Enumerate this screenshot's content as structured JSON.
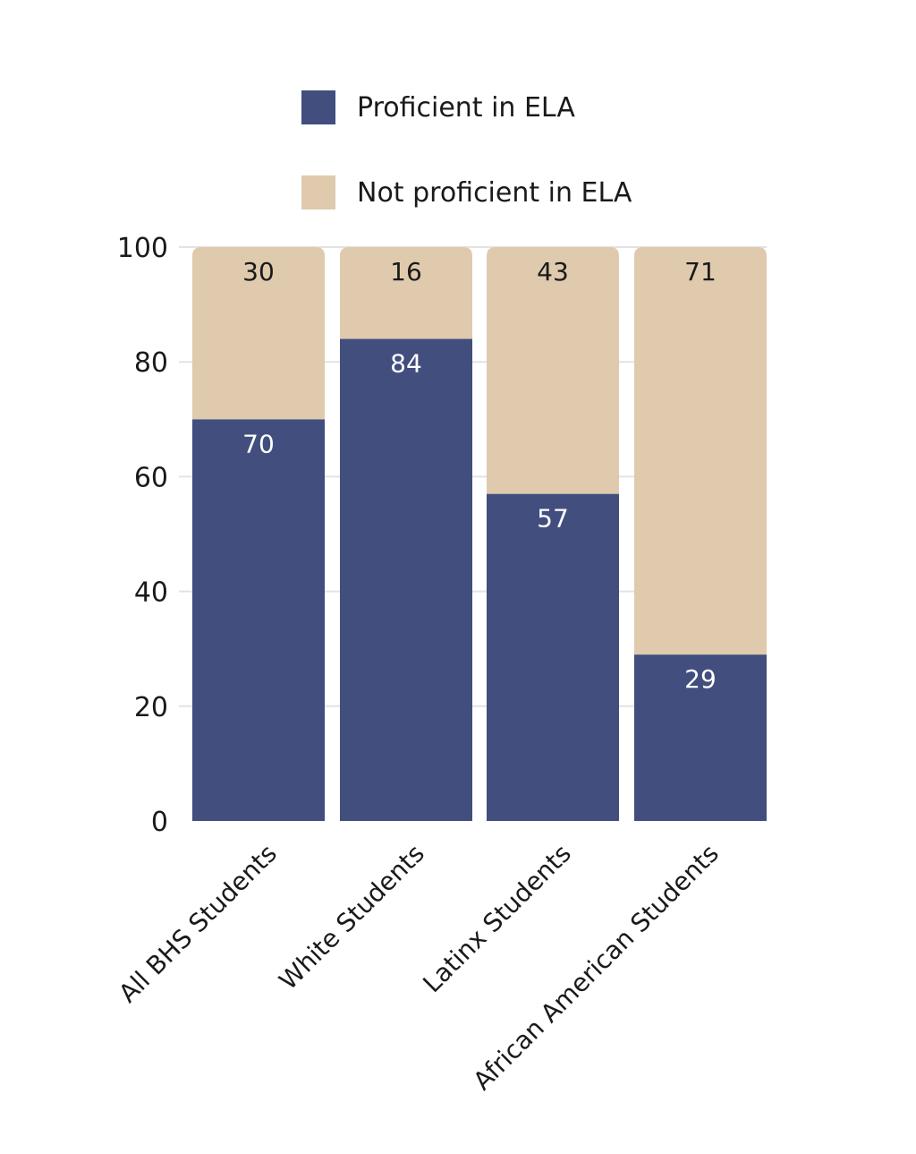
{
  "chart_data": {
    "type": "bar",
    "stacked": true,
    "title": "",
    "xlabel": "",
    "ylabel": "",
    "ylim": [
      0,
      100
    ],
    "yticks": [
      0,
      20,
      40,
      60,
      80,
      100
    ],
    "grid": true,
    "legend_position": "top-center",
    "categories": [
      "All BHS Students",
      "White Students",
      "Latinx Students",
      "African American Students"
    ],
    "series": [
      {
        "name": "Proficient in ELA",
        "color": "#414e7e",
        "label_color": "#ffffff",
        "values": [
          70,
          84,
          57,
          29
        ]
      },
      {
        "name": "Not proficient in ELA",
        "color": "#dfcaad",
        "label_color": "#1a1a1a",
        "values": [
          30,
          16,
          43,
          71
        ]
      }
    ]
  }
}
